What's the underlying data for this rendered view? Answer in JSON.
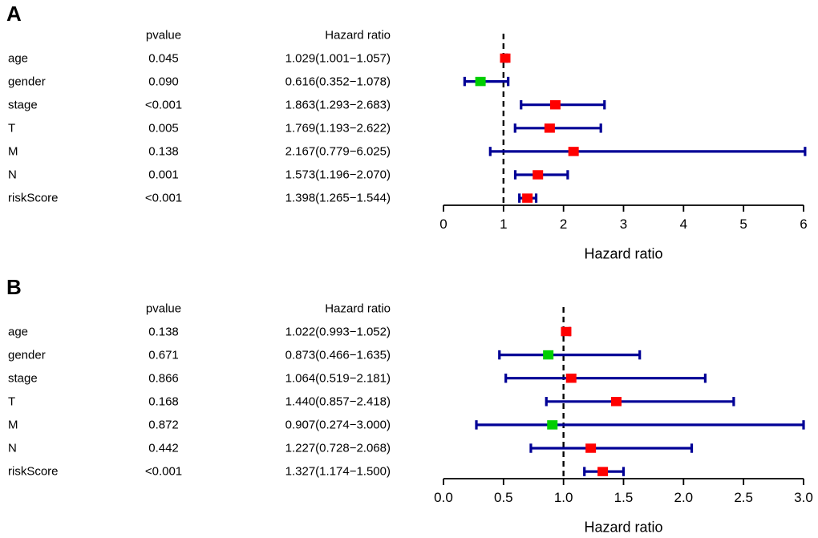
{
  "colors": {
    "background": "#FFFFFF",
    "text": "#000000",
    "axis": "#000000",
    "reference_line": "#000000",
    "error_bar": "#000096",
    "increase": "#FF0000",
    "decrease": "#00CE00"
  },
  "chart_data": [
    {
      "type": "forest",
      "panel_label": "A",
      "columns": {
        "pvalue": "pvalue",
        "hazard_ratio": "Hazard ratio"
      },
      "xlabel": "Hazard ratio",
      "xlim": [
        0,
        6
      ],
      "reference_line": 1,
      "ticks": [
        0,
        1,
        2,
        3,
        4,
        5,
        6
      ],
      "tick_labels": [
        "0",
        "1",
        "2",
        "3",
        "4",
        "5",
        "6"
      ],
      "rows": [
        {
          "label": "age",
          "pvalue": "0.045",
          "hr_text": "1.029(1.001−1.057)",
          "hr": 1.029,
          "ci_low": 1.001,
          "ci_high": 1.057,
          "color": "increase"
        },
        {
          "label": "gender",
          "pvalue": "0.090",
          "hr_text": "0.616(0.352−1.078)",
          "hr": 0.616,
          "ci_low": 0.352,
          "ci_high": 1.078,
          "color": "decrease"
        },
        {
          "label": "stage",
          "pvalue": "<0.001",
          "hr_text": "1.863(1.293−2.683)",
          "hr": 1.863,
          "ci_low": 1.293,
          "ci_high": 2.683,
          "color": "increase"
        },
        {
          "label": "T",
          "pvalue": "0.005",
          "hr_text": "1.769(1.193−2.622)",
          "hr": 1.769,
          "ci_low": 1.193,
          "ci_high": 2.622,
          "color": "increase"
        },
        {
          "label": "M",
          "pvalue": "0.138",
          "hr_text": "2.167(0.779−6.025)",
          "hr": 2.167,
          "ci_low": 0.779,
          "ci_high": 6.025,
          "color": "increase"
        },
        {
          "label": "N",
          "pvalue": "0.001",
          "hr_text": "1.573(1.196−2.070)",
          "hr": 1.573,
          "ci_low": 1.196,
          "ci_high": 2.07,
          "color": "increase"
        },
        {
          "label": "riskScore",
          "pvalue": "<0.001",
          "hr_text": "1.398(1.265−1.544)",
          "hr": 1.398,
          "ci_low": 1.265,
          "ci_high": 1.544,
          "color": "increase"
        }
      ]
    },
    {
      "type": "forest",
      "panel_label": "B",
      "columns": {
        "pvalue": "pvalue",
        "hazard_ratio": "Hazard ratio"
      },
      "xlabel": "Hazard ratio",
      "xlim": [
        0,
        3
      ],
      "reference_line": 1,
      "ticks": [
        0,
        0.5,
        1,
        1.5,
        2,
        2.5,
        3
      ],
      "tick_labels": [
        "0.0",
        "0.5",
        "1.0",
        "1.5",
        "2.0",
        "2.5",
        "3.0"
      ],
      "rows": [
        {
          "label": "age",
          "pvalue": "0.138",
          "hr_text": "1.022(0.993−1.052)",
          "hr": 1.022,
          "ci_low": 0.993,
          "ci_high": 1.052,
          "color": "increase"
        },
        {
          "label": "gender",
          "pvalue": "0.671",
          "hr_text": "0.873(0.466−1.635)",
          "hr": 0.873,
          "ci_low": 0.466,
          "ci_high": 1.635,
          "color": "decrease"
        },
        {
          "label": "stage",
          "pvalue": "0.866",
          "hr_text": "1.064(0.519−2.181)",
          "hr": 1.064,
          "ci_low": 0.519,
          "ci_high": 2.181,
          "color": "increase"
        },
        {
          "label": "T",
          "pvalue": "0.168",
          "hr_text": "1.440(0.857−2.418)",
          "hr": 1.44,
          "ci_low": 0.857,
          "ci_high": 2.418,
          "color": "increase"
        },
        {
          "label": "M",
          "pvalue": "0.872",
          "hr_text": "0.907(0.274−3.000)",
          "hr": 0.907,
          "ci_low": 0.274,
          "ci_high": 3.0,
          "color": "decrease"
        },
        {
          "label": "N",
          "pvalue": "0.442",
          "hr_text": "1.227(0.728−2.068)",
          "hr": 1.227,
          "ci_low": 0.728,
          "ci_high": 2.068,
          "color": "increase"
        },
        {
          "label": "riskScore",
          "pvalue": "<0.001",
          "hr_text": "1.327(1.174−1.500)",
          "hr": 1.327,
          "ci_low": 1.174,
          "ci_high": 1.5,
          "color": "increase"
        }
      ]
    }
  ]
}
